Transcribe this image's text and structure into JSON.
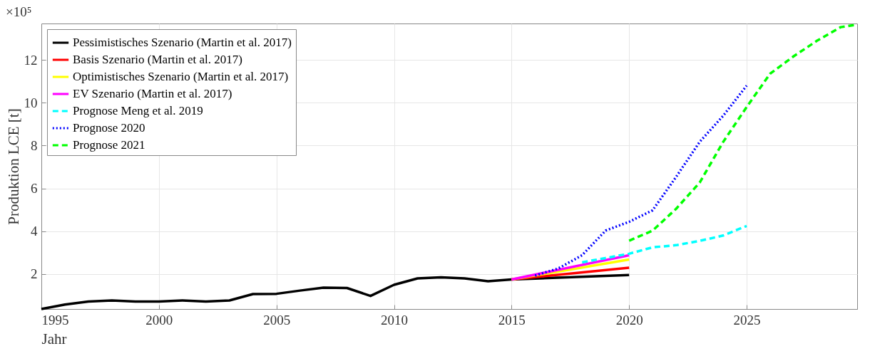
{
  "chart_data": {
    "type": "line",
    "xlabel": "Jahr",
    "ylabel": "Produktion LCE [t]",
    "annotations": [
      "×10⁵"
    ],
    "xlim": [
      1995,
      2029.7
    ],
    "ylim": [
      0.37,
      13.7
    ],
    "xticks": [
      1995,
      2000,
      2005,
      2010,
      2015,
      2020,
      2025
    ],
    "yticks": [
      2,
      4,
      6,
      8,
      10,
      12
    ],
    "grid": true,
    "legend": "top left",
    "series": [
      {
        "name": "Pessimistisches Szenario (Martin et al. 2017)",
        "color": "#000000",
        "line_style": "solid",
        "x": [
          1995,
          1996,
          1997,
          1998,
          1999,
          2000,
          2001,
          2002,
          2003,
          2004,
          2005,
          2006,
          2007,
          2008,
          2009,
          2010,
          2011,
          2012,
          2013,
          2014,
          2015,
          2020
        ],
        "values": [
          0.37,
          0.58,
          0.72,
          0.77,
          0.72,
          0.72,
          0.77,
          0.72,
          0.77,
          1.07,
          1.08,
          1.23,
          1.37,
          1.35,
          0.98,
          1.5,
          1.8,
          1.85,
          1.8,
          1.67,
          1.75,
          1.96
        ]
      },
      {
        "name": "Basis Szenario (Martin et al. 2017)",
        "color": "#ff0000",
        "line_style": "solid",
        "x": [
          2015,
          2020
        ],
        "values": [
          1.75,
          2.3
        ]
      },
      {
        "name": "Optimistisches Szenario (Martin et al. 2017)",
        "color": "#ffff00",
        "line_style": "solid",
        "x": [
          2015,
          2020
        ],
        "values": [
          1.75,
          2.68
        ]
      },
      {
        "name": "EV Szenario (Martin et al. 2017)",
        "color": "#ff00ff",
        "line_style": "solid",
        "x": [
          2015,
          2020
        ],
        "values": [
          1.75,
          2.88
        ]
      },
      {
        "name": "Prognose Meng et al. 2019",
        "color": "#00ffff",
        "line_style": "dashed",
        "x": [
          2018,
          2019,
          2020,
          2021,
          2022,
          2023,
          2024,
          2025
        ],
        "values": [
          2.55,
          2.75,
          2.95,
          3.25,
          3.35,
          3.55,
          3.8,
          4.25
        ]
      },
      {
        "name": "Prognose 2020",
        "color": "#0000ff",
        "line_style": "dotted",
        "x": [
          2016,
          2017,
          2018,
          2019,
          2020,
          2021,
          2022,
          2023,
          2024,
          2025
        ],
        "values": [
          1.93,
          2.27,
          2.88,
          4.03,
          4.44,
          4.98,
          6.54,
          8.17,
          9.39,
          10.8
        ]
      },
      {
        "name": "Prognose 2021",
        "color": "#00ff00",
        "line_style": "dashed",
        "x": [
          2020,
          2021,
          2022,
          2023,
          2024,
          2025,
          2026,
          2027,
          2028,
          2029,
          2029.7
        ],
        "values": [
          3.56,
          4.03,
          5.05,
          6.27,
          8.17,
          9.8,
          11.36,
          12.17,
          12.9,
          13.53,
          13.65
        ]
      }
    ]
  }
}
